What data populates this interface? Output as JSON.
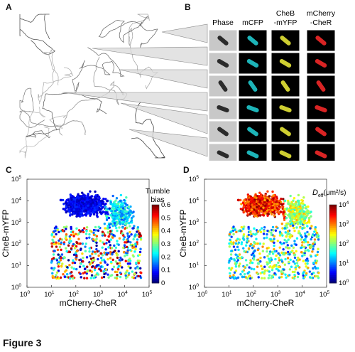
{
  "panel_letters": [
    "A",
    "B",
    "C",
    "D"
  ],
  "figure_caption": "Figure 3",
  "panel_b": {
    "columns": [
      {
        "label_lines": [
          "Phase"
        ],
        "color": "#cfcfcf"
      },
      {
        "label_lines": [
          "mCFP"
        ],
        "color": "#22d3d8"
      },
      {
        "label_lines": [
          "CheB",
          "-mYFP"
        ],
        "color": "#f2f23a"
      },
      {
        "label_lines": [
          "mCherry",
          "-CheR"
        ],
        "color": "#ff2a2a"
      }
    ],
    "rows": 6
  },
  "chart_data": [
    {
      "panel": "C",
      "type": "scatter",
      "xlabel": "mCherry-CheR",
      "ylabel": "CheB-mYFP",
      "x_log": true,
      "y_log": true,
      "xlim": [
        1,
        100000
      ],
      "ylim": [
        1,
        100000
      ],
      "x_ticks": [
        "10",
        "10",
        "10",
        "10",
        "10",
        "10"
      ],
      "x_tick_exps": [
        "0",
        "1",
        "2",
        "3",
        "4",
        "5"
      ],
      "y_ticks": [
        "10",
        "10",
        "10",
        "10",
        "10",
        "10"
      ],
      "y_tick_exps": [
        "0",
        "1",
        "2",
        "3",
        "4",
        "5"
      ],
      "colorbar": {
        "title_lines": [
          "Tumble",
          "bias"
        ],
        "ticks": [
          "0.6",
          "0.5",
          "0.4",
          "0.3",
          "0.2",
          "0.1",
          "0"
        ],
        "range": [
          0,
          0.6
        ],
        "colormap": "jet"
      }
    },
    {
      "panel": "D",
      "type": "scatter",
      "xlabel": "mCherry-CheR",
      "ylabel": "CheB-mYFP",
      "x_log": true,
      "y_log": true,
      "xlim": [
        1,
        100000
      ],
      "ylim": [
        1,
        100000
      ],
      "x_ticks": [
        "10",
        "10",
        "10",
        "10",
        "10",
        "10"
      ],
      "x_tick_exps": [
        "0",
        "1",
        "2",
        "3",
        "4",
        "5"
      ],
      "y_ticks": [
        "10",
        "10",
        "10",
        "10",
        "10",
        "10"
      ],
      "y_tick_exps": [
        "0",
        "1",
        "2",
        "3",
        "4",
        "5"
      ],
      "colorbar": {
        "title_main": "D",
        "title_sub": "eff",
        "title_unit": "(μm²/s)",
        "ticks": [
          "10",
          "10",
          "10",
          "10",
          "10"
        ],
        "tick_exps": [
          "4",
          "3",
          "2",
          "1",
          "0"
        ],
        "range_log10": [
          0,
          4
        ],
        "colormap": "jet"
      }
    }
  ]
}
